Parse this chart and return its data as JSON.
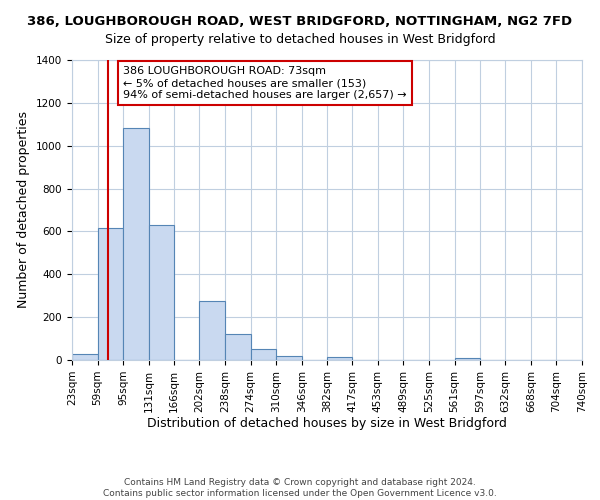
{
  "title_line1": "386, LOUGHBOROUGH ROAD, WEST BRIDGFORD, NOTTINGHAM, NG2 7FD",
  "title_line2": "Size of property relative to detached houses in West Bridgford",
  "xlabel": "Distribution of detached houses by size in West Bridgford",
  "ylabel": "Number of detached properties",
  "bin_edges": [
    23,
    59,
    95,
    131,
    166,
    202,
    238,
    274,
    310,
    346,
    382,
    417,
    453,
    489,
    525,
    561,
    597,
    632,
    668,
    704,
    740
  ],
  "bin_counts": [
    30,
    615,
    1085,
    630,
    0,
    275,
    120,
    50,
    20,
    0,
    15,
    0,
    0,
    0,
    0,
    10,
    0,
    0,
    0,
    0
  ],
  "bar_facecolor": "#c9d9f0",
  "bar_edgecolor": "#5585b5",
  "property_size": 73,
  "vline_color": "#cc0000",
  "vline_x": 73,
  "annotation_text": "386 LOUGHBOROUGH ROAD: 73sqm\n← 5% of detached houses are smaller (153)\n94% of semi-detached houses are larger (2,657) →",
  "annotation_box_edgecolor": "#cc0000",
  "annotation_box_facecolor": "#ffffff",
  "ylim": [
    0,
    1400
  ],
  "yticks": [
    0,
    200,
    400,
    600,
    800,
    1000,
    1200,
    1400
  ],
  "tick_labels": [
    "23sqm",
    "59sqm",
    "95sqm",
    "131sqm",
    "166sqm",
    "202sqm",
    "238sqm",
    "274sqm",
    "310sqm",
    "346sqm",
    "382sqm",
    "417sqm",
    "453sqm",
    "489sqm",
    "525sqm",
    "561sqm",
    "597sqm",
    "632sqm",
    "668sqm",
    "704sqm",
    "740sqm"
  ],
  "footer_line1": "Contains HM Land Registry data © Crown copyright and database right 2024.",
  "footer_line2": "Contains public sector information licensed under the Open Government Licence v3.0.",
  "background_color": "#ffffff",
  "grid_color": "#c0cfe0",
  "title_fontsize": 9.5,
  "subtitle_fontsize": 9,
  "axis_label_fontsize": 9,
  "tick_fontsize": 7.5,
  "footer_fontsize": 6.5
}
